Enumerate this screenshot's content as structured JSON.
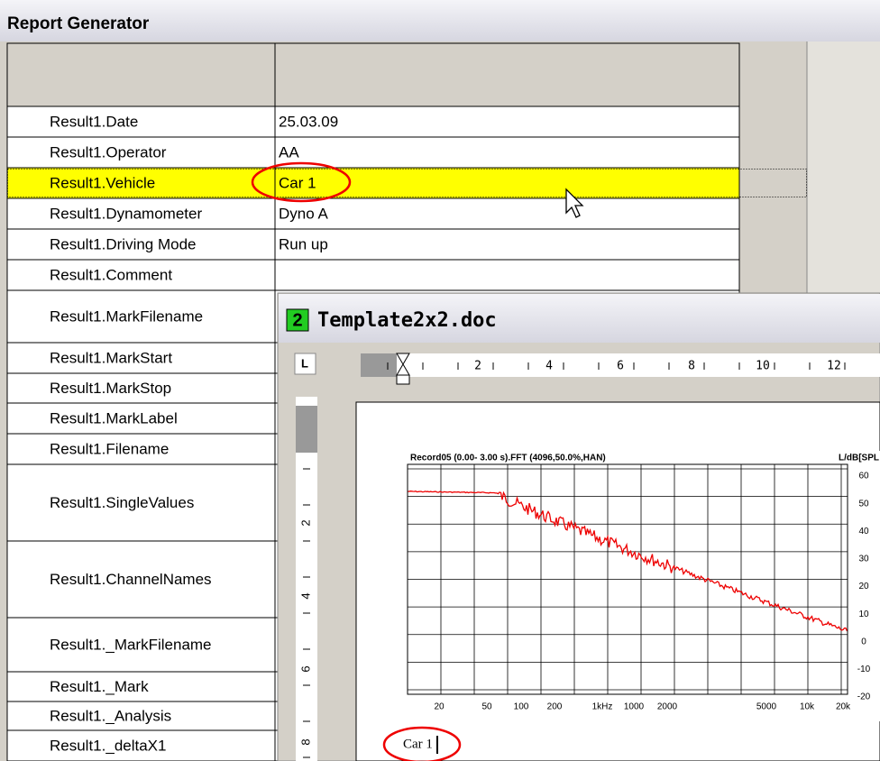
{
  "window_title": "Report Generator",
  "rows": [
    {
      "label": "Result1.Date",
      "value": "25.03.09"
    },
    {
      "label": "Result1.Operator",
      "value": "AA"
    },
    {
      "label": "Result1.Vehicle",
      "value": "Car 1"
    },
    {
      "label": "Result1.Dynamometer",
      "value": "Dyno A"
    },
    {
      "label": "Result1.Driving Mode",
      "value": "Run up"
    },
    {
      "label": "Result1.Comment"
    },
    {
      "label": "Result1.MarkFilename"
    },
    {
      "label": "Result1.MarkStart"
    },
    {
      "label": "Result1.MarkStop"
    },
    {
      "label": "Result1.MarkLabel"
    },
    {
      "label": "Result1.Filename"
    },
    {
      "label": "Result1.SingleValues"
    },
    {
      "label": "Result1.ChannelNames"
    },
    {
      "label": "Result1._MarkFilename"
    },
    {
      "label": "Result1._Mark"
    },
    {
      "label": "Result1._Analysis"
    },
    {
      "label": "Result1._deltaX1"
    }
  ],
  "doc": {
    "badge": "2",
    "title": "Template2x2.doc",
    "tab_button": "L",
    "ruler_h": [
      "2",
      "4",
      "6",
      "8",
      "10",
      "12"
    ],
    "ruler_v": [
      "2",
      "4",
      "6",
      "8"
    ],
    "plot": {
      "title": "Record05 (0.00- 3.00 s).FFT (4096,50.0%,HAN)",
      "y_label": "L/dB[SPL",
      "x_labels": [
        "20",
        "50",
        "100",
        "200",
        "1kHz",
        "1000",
        "2000",
        "5000",
        "10k",
        "20k"
      ],
      "y_labels": [
        "60",
        "50",
        "40",
        "30",
        "20",
        "10",
        "0",
        "-10",
        "-20"
      ]
    },
    "caption": "Car 1"
  }
}
